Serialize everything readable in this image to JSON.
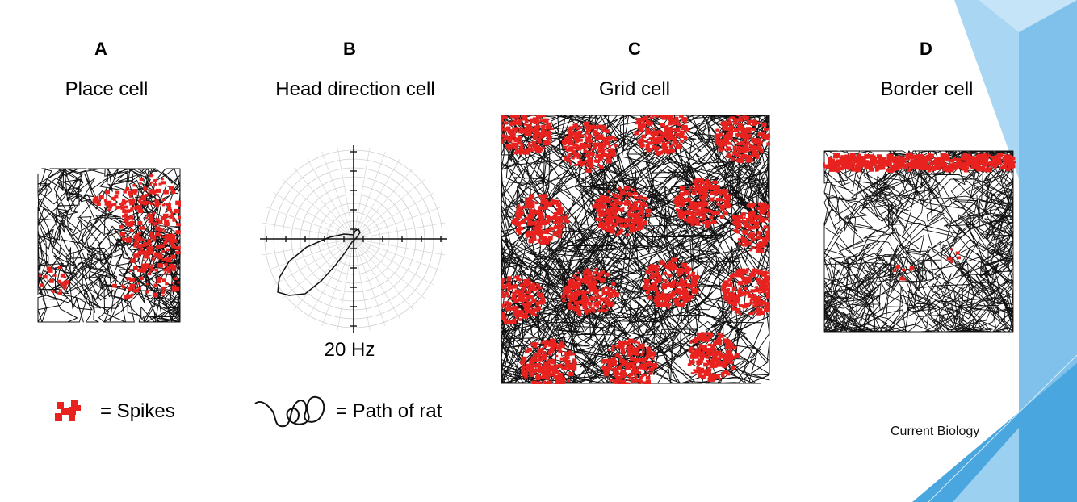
{
  "panels": [
    {
      "letter": "A",
      "title": "Place cell"
    },
    {
      "letter": "B",
      "title": "Head direction cell"
    },
    {
      "letter": "C",
      "title": "Grid cell"
    },
    {
      "letter": "D",
      "title": "Border cell"
    }
  ],
  "polar_label": "20 Hz",
  "legend": {
    "spikes": "= Spikes",
    "path": "= Path of rat"
  },
  "credit": "Current Biology",
  "colors": {
    "spikes": "#e8221f",
    "path": "#111111",
    "accent_light": "#cfe8f6",
    "accent_mid": "#8cc8ec",
    "accent_dark": "#4aa6de"
  }
}
